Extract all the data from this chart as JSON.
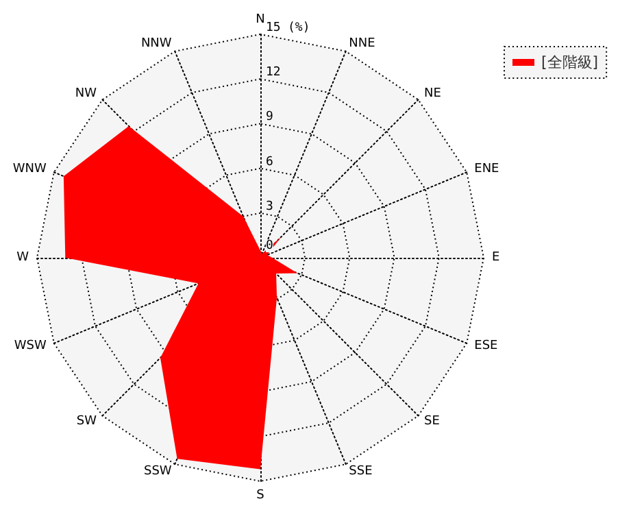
{
  "chart_data": {
    "type": "radar",
    "categories": [
      "N",
      "NNE",
      "NE",
      "ENE",
      "E",
      "ESE",
      "SE",
      "SSE",
      "S",
      "SSW",
      "SW",
      "WSW",
      "W",
      "WNW",
      "NW",
      "NNW"
    ],
    "series": [
      {
        "name": "[全階級]",
        "color": "#ff0000",
        "values": [
          0.5,
          0.3,
          2,
          0.5,
          0.8,
          2.7,
          1.5,
          2.9,
          14.2,
          14.6,
          9.5,
          4.5,
          13.1,
          14.3,
          12.5,
          3.0
        ]
      }
    ],
    "ylim": [
      0,
      15
    ],
    "yticks": [
      0,
      3,
      6,
      9,
      12,
      15
    ],
    "ylabel": "(%)",
    "legend": "top right",
    "grid": true
  }
}
